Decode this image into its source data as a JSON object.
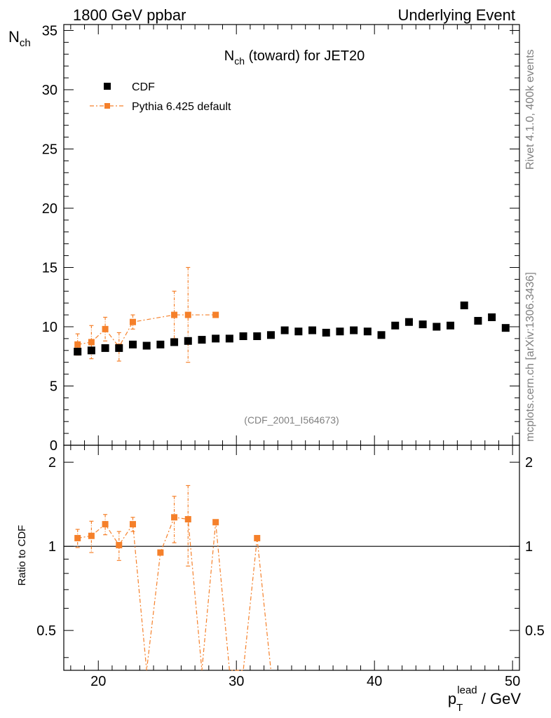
{
  "header": {
    "left": "1800 GeV ppbar",
    "right": "Underlying Event"
  },
  "side": {
    "rivet": "Rivet 4.1.0,  400k events",
    "mcplots": "mcplots.cern.ch [arXiv:1306.3436]"
  },
  "colors": {
    "data": "#000000",
    "mc": "#f5802a",
    "text_grey": "#808080"
  },
  "chart_data": [
    {
      "type": "scatter",
      "title_main": "N",
      "title_sub": "ch",
      "title_rest": " (toward) for JET20",
      "ylabel_main": "N",
      "ylabel_sub": "ch",
      "watermark": "(CDF_2001_I564673)",
      "xlim": [
        17.5,
        50.5
      ],
      "ylim": [
        0,
        35.5
      ],
      "y_ticks": [
        "0",
        "5",
        "10",
        "15",
        "20",
        "25",
        "30",
        "35"
      ],
      "legend": [
        "CDF",
        "Pythia 6.425 default"
      ],
      "series": [
        {
          "name": "CDF",
          "x": [
            18.5,
            19.5,
            20.5,
            21.5,
            22.5,
            23.5,
            24.5,
            25.5,
            26.5,
            27.5,
            28.5,
            29.5,
            30.5,
            31.5,
            32.5,
            33.5,
            34.5,
            35.5,
            36.5,
            37.5,
            38.5,
            39.5,
            40.5,
            41.5,
            42.5,
            43.5,
            44.5,
            45.5,
            46.5,
            47.5,
            48.5,
            49.5
          ],
          "y": [
            7.9,
            8.0,
            8.2,
            8.2,
            8.5,
            8.4,
            8.5,
            8.7,
            8.8,
            8.9,
            9.0,
            9.0,
            9.2,
            9.2,
            9.3,
            9.7,
            9.6,
            9.7,
            9.5,
            9.6,
            9.7,
            9.6,
            9.3,
            10.1,
            10.4,
            10.2,
            10.0,
            10.1,
            11.8,
            10.5,
            10.8,
            9.9
          ]
        },
        {
          "name": "Pythia 6.425 default",
          "x": [
            18.5,
            19.5,
            20.5,
            21.5,
            22.5,
            25.5,
            26.5,
            28.5
          ],
          "y": [
            8.5,
            8.7,
            9.8,
            8.3,
            10.4,
            11.0,
            11.0,
            11.0
          ],
          "yerr": [
            0.9,
            1.4,
            1.0,
            1.2,
            0.6,
            2.0,
            4.0,
            0.0
          ]
        }
      ]
    },
    {
      "type": "line",
      "ylabel": "Ratio to CDF",
      "xlabel_main": "p",
      "xlabel_sub": "T",
      "xlabel_sup": "lead",
      "xlabel_rest": " / GeV",
      "xlim": [
        17.5,
        50.5
      ],
      "ylim": [
        0.36,
        2.3
      ],
      "x_ticks": [
        "20",
        "30",
        "40",
        "50"
      ],
      "y_ticks_left": [
        "0.5",
        "1",
        "2"
      ],
      "y_ticks_right": [
        "0.5",
        "1",
        "2"
      ],
      "reference": 1.0,
      "series": [
        {
          "name": "Pythia 6.425 default",
          "x": [
            18.5,
            19.5,
            20.5,
            21.5,
            22.5,
            23.5,
            24.5,
            25.5,
            26.5,
            27.5,
            28.5,
            29.5,
            30.5,
            31.5,
            32.5
          ],
          "y": [
            1.07,
            1.09,
            1.2,
            1.01,
            1.2,
            0.0,
            0.95,
            1.27,
            1.25,
            0.0,
            1.22,
            0.0,
            0.0,
            1.07,
            0.0
          ],
          "yerr": [
            0.08,
            0.14,
            0.1,
            0.12,
            0.07,
            0.0,
            0.0,
            0.24,
            0.4,
            0.0,
            0.0,
            0.0,
            0.0,
            0.0,
            0.0
          ]
        }
      ]
    }
  ]
}
